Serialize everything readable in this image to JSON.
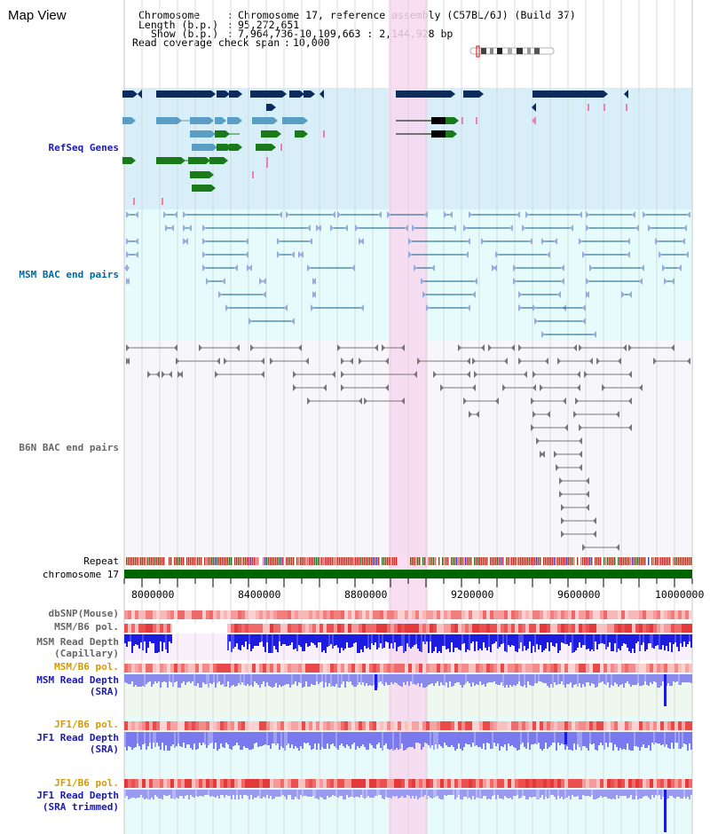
{
  "header": {
    "title": "Map View",
    "chromosome_label": "Chromosome",
    "chromosome_value": "Chromosome 17, reference assembly (C57BL/6J) (Build 37)",
    "length_label": "Length (b.p.)",
    "length_value": "95,272,651",
    "show_label": "Show (b.p.)",
    "show_value": "7,964,736-10,109,663 : 2,144,928 bp",
    "coverage_label": "Read coverage check span",
    "coverage_value": "10,000"
  },
  "tracks": {
    "refseq": "RefSeq Genes",
    "msm_bac": "MSM BAC end pairs",
    "b6n_bac": "B6N BAC end pairs",
    "repeat": "Repeat",
    "chromosome": "chromosome 17",
    "dbsnp": "dbSNP(Mouse)",
    "msm_b6_pol_1": "MSM/B6 pol.",
    "msm_depth_cap_1": "MSM Read Depth",
    "msm_depth_cap_2": "(Capillary)",
    "msm_b6_pol_2": "MSM/B6 pol.",
    "msm_depth_sra_1": "MSM Read Depth",
    "msm_depth_sra_2": "(SRA)",
    "jf1_b6_pol_1": "JF1/B6 pol.",
    "jf1_depth_sra_1": "JF1 Read Depth",
    "jf1_depth_sra_2": "(SRA)",
    "jf1_b6_pol_2": "JF1/B6 pol.",
    "jf1_depth_trim_1": "JF1 Read Depth",
    "jf1_depth_trim_2": "(SRA trimmed)"
  },
  "axis": {
    "ticks": [
      "8000000",
      "8400000",
      "8800000",
      "9200000",
      "9600000",
      "10000000"
    ]
  },
  "colors": {
    "highlight": "#f8d8f0",
    "refseq_bg": "#d8effa",
    "msm_bg": "#e6fbfb",
    "gene_navy": "#0c2c5c",
    "gene_teal": "#5a9ec6",
    "gene_green": "#1a7a1a",
    "chromosome_bar": "#006400",
    "depth_blue": "#1a1ae8",
    "depth_light": "#7f7ff0"
  }
}
